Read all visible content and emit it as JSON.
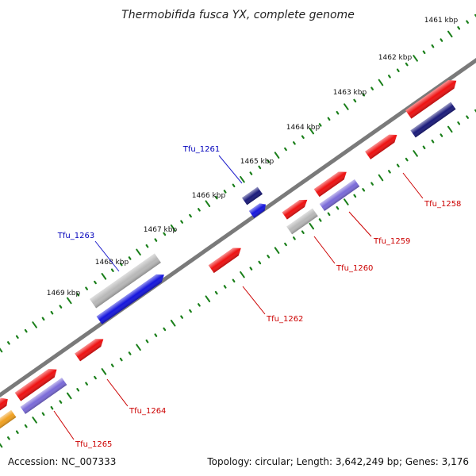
{
  "title": "Thermobifida fusca YX, complete genome",
  "footer": {
    "accession": "Accession: NC_007333",
    "summary": "Topology: circular; Length: 3,642,249 bp; Genes: 3,176"
  },
  "colors": {
    "backbone": "#7a7a7a",
    "tick": "#1a7f1a",
    "red": "#ee1111",
    "grey": "#b8b8b8",
    "blue": "#1515dd",
    "navy": "#1a1a7a",
    "lavender": "#7a6ad8",
    "orange": "#f0a020",
    "label_red": "#cc0000",
    "label_blue": "#0000bb",
    "leader": "#cc0000",
    "leader_blue": "#2222cc"
  },
  "ticks": [
    {
      "label": "1461 kbp"
    },
    {
      "label": "1462 kbp"
    },
    {
      "label": "1463 kbp"
    },
    {
      "label": "1464 kbp"
    },
    {
      "label": "1465 kbp"
    },
    {
      "label": "1466 kbp"
    },
    {
      "label": "1467 kbp"
    },
    {
      "label": "1468 kbp"
    },
    {
      "label": "1469 kbp"
    }
  ],
  "genes": [
    {
      "label": "Tfu_1258",
      "label_color": "label_red"
    },
    {
      "label": "Tfu_1259",
      "label_color": "label_red"
    },
    {
      "label": "Tfu_1260",
      "label_color": "label_red"
    },
    {
      "label": "Tfu_1261",
      "label_color": "label_blue"
    },
    {
      "label": "Tfu_1262",
      "label_color": "label_red"
    },
    {
      "label": "Tfu_1263",
      "label_color": "label_blue"
    },
    {
      "label": "Tfu_1264",
      "label_color": "label_red"
    },
    {
      "label": "Tfu_1265",
      "label_color": "label_red"
    }
  ]
}
